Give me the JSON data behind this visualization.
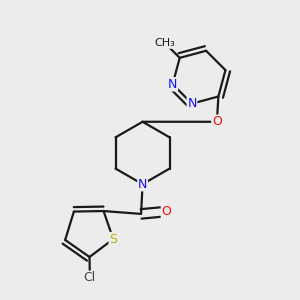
{
  "bg_color": "#ececec",
  "bond_color": "#1a1a1a",
  "bond_width": 1.6,
  "colors": {
    "N": "#1010ee",
    "O": "#ee1010",
    "S": "#b8b800",
    "Cl": "#444444",
    "bond": "#1a1a1a",
    "methyl": "#1a1a1a"
  },
  "font_size": 9
}
